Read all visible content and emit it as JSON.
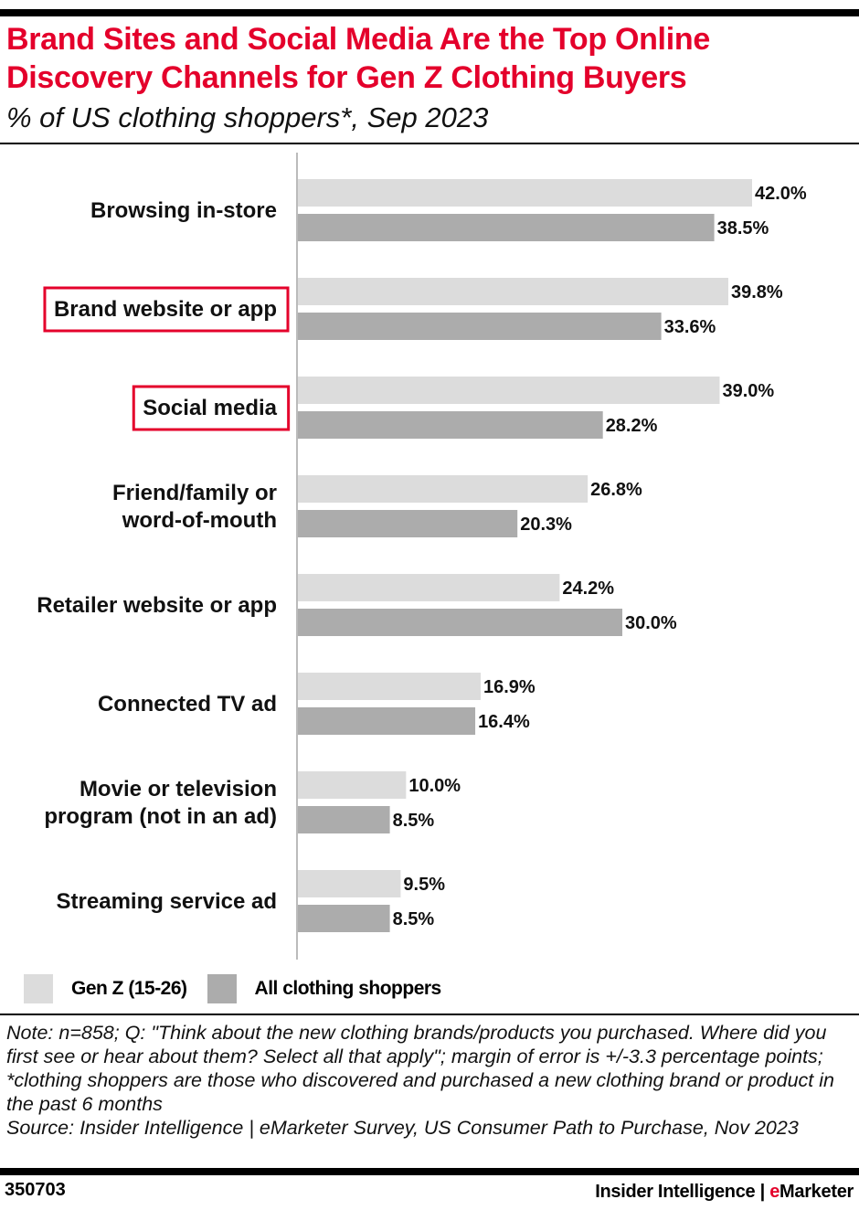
{
  "title": "Brand Sites and Social Media Are the Top Online Discovery Channels for Gen Z Clothing Buyers",
  "subtitle": "% of US clothing shoppers*, Sep 2023",
  "chart_data": {
    "type": "bar",
    "orientation": "horizontal",
    "categories": [
      "Browsing in-store",
      "Brand website or app",
      "Social media",
      "Friend/family or word-of-mouth",
      "Retailer website or app",
      "Connected TV ad",
      "Movie or television program (not in an ad)",
      "Streaming service ad"
    ],
    "category_lines": [
      [
        "Browsing in-store"
      ],
      [
        "Brand website or app"
      ],
      [
        "Social media"
      ],
      [
        "Friend/family or",
        "word-of-mouth"
      ],
      [
        "Retailer website or app"
      ],
      [
        "Connected TV ad"
      ],
      [
        "Movie or television",
        "program (not in an ad)"
      ],
      [
        "Streaming service ad"
      ]
    ],
    "highlighted_categories": [
      "Brand website or app",
      "Social media"
    ],
    "series": [
      {
        "name": "Gen Z (15-26)",
        "color": "#dcdcdc",
        "values": [
          42.0,
          39.8,
          39.0,
          26.8,
          24.2,
          16.9,
          10.0,
          9.5
        ],
        "labels": [
          "42.0%",
          "39.8%",
          "39.0%",
          "26.8%",
          "24.2%",
          "16.9%",
          "10.0%",
          "9.5%"
        ]
      },
      {
        "name": "All clothing shoppers",
        "color": "#acacac",
        "values": [
          38.5,
          33.6,
          28.2,
          20.3,
          30.0,
          16.4,
          8.5,
          8.5
        ],
        "labels": [
          "38.5%",
          "33.6%",
          "28.2%",
          "20.3%",
          "30.0%",
          "16.4%",
          "8.5%",
          "8.5%"
        ]
      }
    ],
    "xlim": [
      0,
      42
    ],
    "grid": false,
    "legend": "bottom-left",
    "highlight_color": "#e4002b"
  },
  "note": "Note: n=858; Q: \"Think about the new clothing brands/products you purchased. Where did you first see or hear about them? Select all that apply\"; margin of error is +/-3.3 percentage points; *clothing shoppers are those who discovered and purchased a new clothing brand or product in the past 6 months",
  "source": "Source: Insider Intelligence | eMarketer Survey, US Consumer Path to Purchase, Nov 2023",
  "footer": {
    "id": "350703",
    "brand_prefix": "Insider Intelligence | ",
    "brand_e": "e",
    "brand_rest": "Marketer"
  }
}
